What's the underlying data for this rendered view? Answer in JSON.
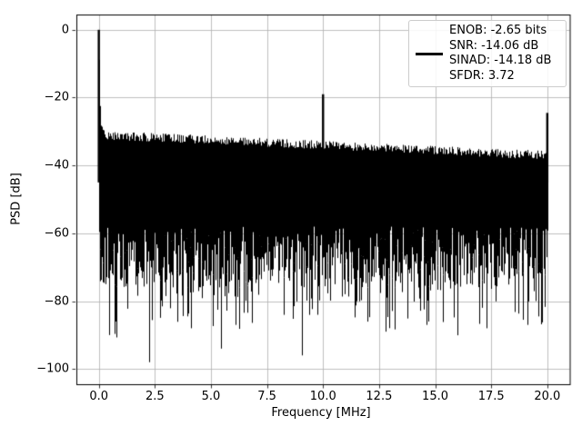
{
  "figure": {
    "background": "#ffffff",
    "plot_background": "#ffffff",
    "line_color": "#000000",
    "grid_color": "#b0b0b0",
    "legend_border_color": "#cccccc"
  },
  "chart_data": {
    "type": "line",
    "title": "",
    "xlabel": "Frequency [MHz]",
    "ylabel": "PSD [dB]",
    "xlim": [
      -1.0,
      21.0
    ],
    "ylim": [
      -104.5,
      4.5
    ],
    "xticks": [
      0.0,
      2.5,
      5.0,
      7.5,
      10.0,
      12.5,
      15.0,
      17.5,
      20.0
    ],
    "xtick_labels": [
      "0.0",
      "2.5",
      "5.0",
      "7.5",
      "10.0",
      "12.5",
      "15.0",
      "17.5",
      "20.0"
    ],
    "yticks": [
      0,
      -20,
      -40,
      -60,
      -80,
      -100
    ],
    "ytick_labels": [
      "0",
      "−20",
      "−40",
      "−60",
      "−80",
      "−100"
    ],
    "grid": true,
    "legend_position": "upper right",
    "legend_lines": [
      "ENOB: -2.65 bits",
      "SNR: -14.06 dB",
      "SINAD: -14.18 dB",
      "SFDR: 3.72"
    ],
    "signal": {
      "freq_range_mhz": [
        0,
        20
      ],
      "tones": [
        {
          "freq_mhz": 0.0,
          "level_db": 0.0
        },
        {
          "freq_mhz": 10.0,
          "level_db": -19.0
        },
        {
          "freq_mhz": 20.0,
          "level_db": -24.5
        }
      ],
      "noise_floor_top_db_at_0mhz": -31.0,
      "noise_floor_top_db_at_20mhz": -37.0,
      "noise_top_jitter_db": 1.3,
      "noise_body_bottom_db_range": [
        -58,
        -76
      ],
      "deep_null_probability": 0.3,
      "deep_null_extra_db_range": [
        4,
        16
      ],
      "deep_nulls": [
        {
          "freq_mhz": 0.48,
          "level_db": -90
        },
        {
          "freq_mhz": 0.75,
          "level_db": -86
        },
        {
          "freq_mhz": 2.24,
          "level_db": -98
        },
        {
          "freq_mhz": 4.1,
          "level_db": -88
        },
        {
          "freq_mhz": 5.45,
          "level_db": -94
        },
        {
          "freq_mhz": 6.1,
          "level_db": -87
        },
        {
          "freq_mhz": 9.05,
          "level_db": -96
        },
        {
          "freq_mhz": 12.8,
          "level_db": -89
        },
        {
          "freq_mhz": 14.6,
          "level_db": -87
        },
        {
          "freq_mhz": 17.3,
          "level_db": -88
        },
        {
          "freq_mhz": 19.1,
          "level_db": -87
        }
      ],
      "dc_skirt_decay_mhz": 0.045,
      "seed": 42
    }
  }
}
